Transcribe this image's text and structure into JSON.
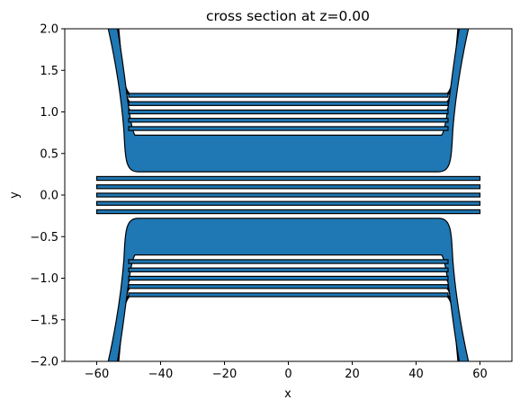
{
  "chart_data": {
    "type": "area",
    "title": "cross section at z=0.00",
    "xlabel": "x",
    "ylabel": "y",
    "xlim": [
      -70,
      70
    ],
    "ylim": [
      -2,
      2
    ],
    "xticks": [
      -60,
      -40,
      -20,
      0,
      20,
      40,
      60
    ],
    "yticks": [
      -2.0,
      -1.5,
      -1.0,
      -0.5,
      0.0,
      0.5,
      1.0,
      1.5,
      2.0
    ],
    "xtick_labels": [
      "−60",
      "−40",
      "−20",
      "0",
      "20",
      "40",
      "60"
    ],
    "ytick_labels": [
      "−2.0",
      "−1.5",
      "−1.0",
      "−0.5",
      "0.0",
      "0.5",
      "1.0",
      "1.5",
      "2.0"
    ],
    "grid": false,
    "fill_color": "#1f77b4",
    "edge_color": "#000000",
    "center_strips": {
      "x_range": [
        -60,
        60
      ],
      "y_centers": [
        -0.2,
        -0.1,
        0.0,
        0.1,
        0.2
      ],
      "thickness": 0.045
    },
    "upper_block": {
      "x_range": [
        -50,
        50
      ],
      "y_bottom": 0.28,
      "y_top": 0.72,
      "flare_to_x": [
        -56,
        56
      ]
    },
    "lower_block": {
      "x_range": [
        -50,
        50
      ],
      "y_top": -0.28,
      "y_bottom": -0.72,
      "flare_to_x": [
        -56,
        56
      ]
    },
    "upper_strips": {
      "x_range": [
        -50,
        50
      ],
      "y_centers": [
        0.8,
        0.9,
        1.0,
        1.1,
        1.2
      ],
      "thickness": 0.045
    },
    "lower_strips": {
      "x_range": [
        -50,
        50
      ],
      "y_centers": [
        -0.8,
        -0.9,
        -1.0,
        -1.1,
        -1.2
      ],
      "thickness": 0.045
    }
  }
}
